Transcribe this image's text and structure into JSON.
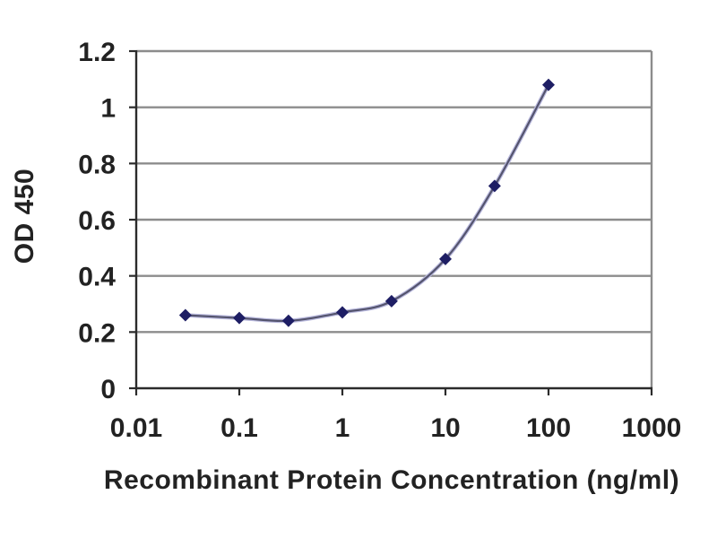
{
  "chart_data": {
    "type": "line",
    "title": "",
    "xlabel": "Recombinant Protein Concentration (ng/ml)",
    "ylabel": "OD 450",
    "x_scale": "log",
    "x": [
      0.03,
      0.1,
      0.3,
      1,
      3,
      10,
      30,
      100
    ],
    "y": [
      0.26,
      0.25,
      0.24,
      0.27,
      0.31,
      0.46,
      0.72,
      1.08
    ],
    "xlim": [
      0.01,
      1000
    ],
    "ylim": [
      0,
      1.2
    ],
    "x_ticks": [
      0.01,
      0.1,
      1,
      10,
      100,
      1000
    ],
    "x_ticklabels": [
      "0.01",
      "0.1",
      "1",
      "10",
      "100",
      "1000"
    ],
    "y_ticks": [
      0,
      0.2,
      0.4,
      0.6,
      0.8,
      1,
      1.2
    ],
    "y_ticklabels": [
      "0",
      "0.2",
      "0.4",
      "0.6",
      "0.8",
      "1",
      "1.2"
    ],
    "grid": "horizontal",
    "legend": "none",
    "line_smoothing": "smoothed",
    "marker": "diamond",
    "colors": {
      "line_core": "#54546e",
      "line_halo": "#b9b9dd",
      "marker": "#1e1e64",
      "gridline": "#8c8c8c",
      "axis": "#2b2b2b",
      "tick_text": "#222222",
      "background": "#ffffff"
    }
  }
}
